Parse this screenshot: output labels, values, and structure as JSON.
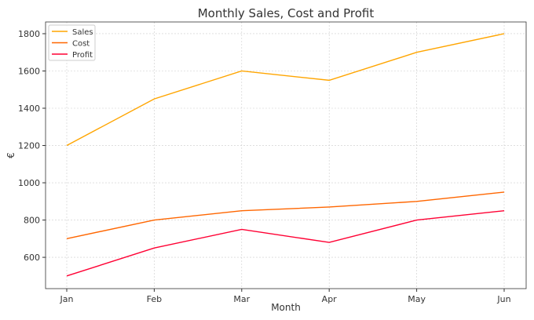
{
  "chart_data": {
    "type": "line",
    "title": "Monthly Sales, Cost and Profit",
    "xlabel": "Month",
    "ylabel": "€",
    "categories": [
      "Jan",
      "Feb",
      "Mar",
      "Apr",
      "May",
      "Jun"
    ],
    "series": [
      {
        "name": "Sales",
        "color": "#FFA500",
        "values": [
          1200,
          1450,
          1600,
          1550,
          1700,
          1800
        ]
      },
      {
        "name": "Cost",
        "color": "#FF6600",
        "values": [
          700,
          800,
          850,
          870,
          900,
          950
        ]
      },
      {
        "name": "Profit",
        "color": "#FF0033",
        "values": [
          500,
          650,
          750,
          680,
          800,
          850
        ]
      }
    ],
    "yticks": [
      600,
      800,
      1000,
      1200,
      1400,
      1600,
      1800
    ],
    "ylim": [
      432,
      1863
    ],
    "grid": true,
    "legend_position": "top-left"
  }
}
